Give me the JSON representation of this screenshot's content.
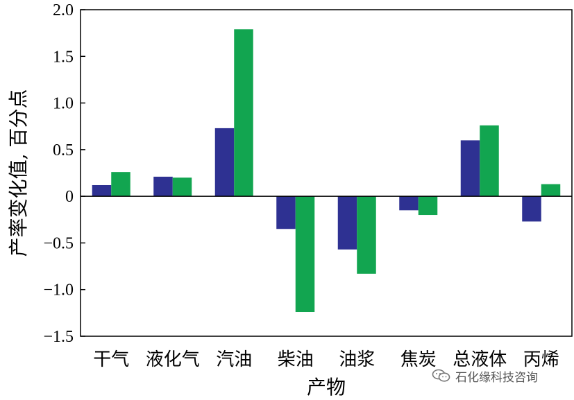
{
  "chart_data": {
    "type": "bar",
    "title": "",
    "xlabel": "产物",
    "ylabel": "产率变化值, 百分点",
    "categories": [
      "干气",
      "液化气",
      "汽油",
      "柴油",
      "油浆",
      "焦炭",
      "总液体",
      "丙烯"
    ],
    "series": [
      {
        "values": [
          0.12,
          0.21,
          0.73,
          -0.35,
          -0.57,
          -0.15,
          0.6,
          -0.27
        ]
      },
      {
        "values": [
          0.26,
          0.2,
          1.79,
          -1.24,
          -0.83,
          -0.2,
          0.76,
          0.13
        ]
      }
    ],
    "ylim": [
      -1.5,
      2.0
    ],
    "yticks": [
      2.0,
      1.5,
      1.0,
      0.5,
      0,
      -0.5,
      -1.0,
      -1.5
    ],
    "ytick_labels": [
      "2.0",
      "1.5",
      "1.0",
      "0.5",
      "0",
      "−0.5",
      "−1.0",
      "−1.5"
    ],
    "grid": false,
    "legend": "none",
    "colors": [
      "#2e3192",
      "#12a550"
    ]
  },
  "watermark": {
    "text": "石化缘科技咨询",
    "icon": "wechat-icon"
  }
}
